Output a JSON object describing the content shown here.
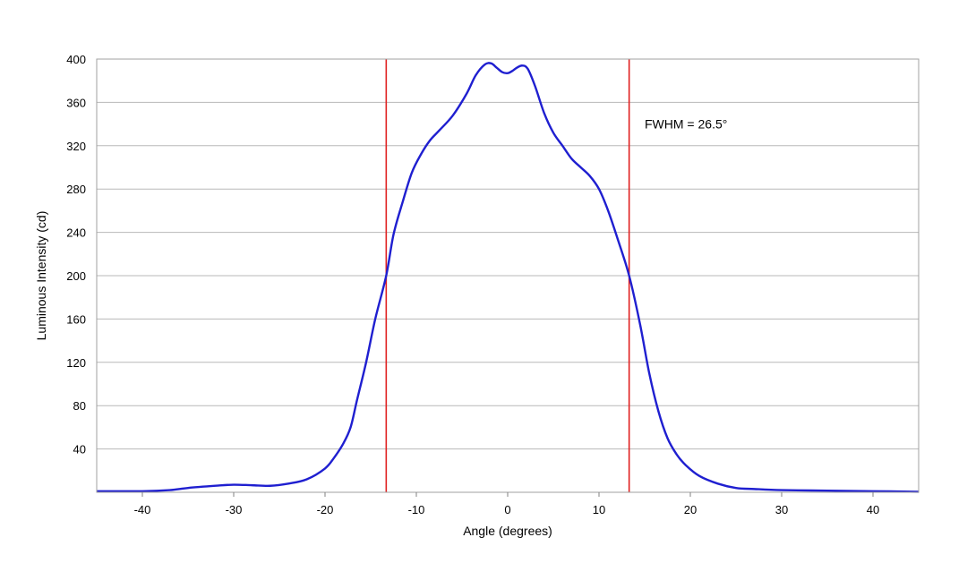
{
  "chart_data": {
    "type": "line",
    "title": "",
    "xlabel": "Angle (degrees)",
    "ylabel": "Luminous Intensity (cd)",
    "xlim": [
      -45,
      45
    ],
    "ylim": [
      0,
      400
    ],
    "xticks": [
      -40,
      -30,
      -20,
      -10,
      0,
      10,
      20,
      30,
      40
    ],
    "yticks": [
      40,
      80,
      120,
      160,
      200,
      240,
      280,
      320,
      360,
      400
    ],
    "grid": "horizontal",
    "legend": "none",
    "series": [
      {
        "color": "#1f1fd0",
        "x": [
          -45,
          -40,
          -37,
          -35,
          -32,
          -30,
          -28,
          -26,
          -24,
          -22,
          -20,
          -19,
          -18,
          -17.2,
          -16.5,
          -15.5,
          -14.5,
          -13.3,
          -12.5,
          -11.5,
          -10.5,
          -9.5,
          -8.5,
          -7.5,
          -6,
          -4.5,
          -3.5,
          -2.5,
          -1.8,
          -1.2,
          -0.6,
          0,
          0.5,
          1,
          1.6,
          2.2,
          3,
          4,
          5,
          6,
          7,
          8,
          9,
          10,
          11,
          12,
          13.3,
          14.5,
          15.5,
          16.5,
          17.5,
          18.5,
          19.5,
          21,
          23,
          25,
          27,
          30,
          35,
          40,
          45
        ],
        "y": [
          1,
          1,
          2,
          4,
          6,
          7,
          6.5,
          6,
          8,
          12,
          22,
          32,
          45,
          60,
          85,
          120,
          160,
          200,
          238,
          268,
          295,
          312,
          325,
          334,
          348,
          368,
          385,
          395,
          396,
          392,
          388,
          387,
          389,
          392,
          394,
          391,
          375,
          350,
          332,
          320,
          308,
          300,
          292,
          280,
          260,
          235,
          200,
          155,
          110,
          75,
          50,
          35,
          25,
          15,
          8,
          4,
          3,
          2,
          1.5,
          1,
          0.5
        ]
      }
    ],
    "vlines": [
      {
        "x": -13.3,
        "color": "#e02020"
      },
      {
        "x": 13.3,
        "color": "#e02020"
      }
    ],
    "annotations": [
      {
        "text": "FWHM = 26.5°",
        "x": 15,
        "y": 340
      }
    ]
  }
}
